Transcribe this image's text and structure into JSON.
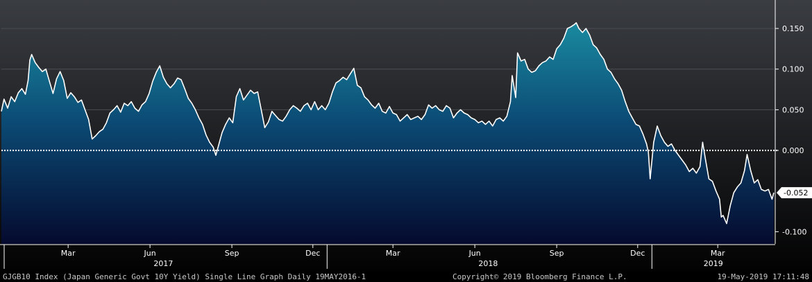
{
  "footer": {
    "description": "GJGB10 Index (Japan Generic Govt 10Y Yield) Single Line Graph  Daily 19MAY2016-1",
    "copyright": "Copyright© 2019 Bloomberg Finance L.P.",
    "timestamp": "19-May-2019 17:11:48"
  },
  "chart_data": {
    "type": "area",
    "title": "",
    "xlabel": "",
    "ylabel": "",
    "x_range": [
      "2016-12-30",
      "2019-05-17"
    ],
    "ylim": [
      -0.115,
      0.185
    ],
    "y_ticks": [
      {
        "value": 0.15,
        "label": "0.150"
      },
      {
        "value": 0.1,
        "label": "0.100"
      },
      {
        "value": 0.05,
        "label": "0.050"
      },
      {
        "value": 0.0,
        "label": "0.000"
      },
      {
        "value": -0.1,
        "label": "-0.100"
      }
    ],
    "zero_line": 0.0,
    "last_value": {
      "value": -0.052,
      "label": "-0.052"
    },
    "month_ticks": [
      {
        "date": "2017-03-15",
        "label": "Mar"
      },
      {
        "date": "2017-06-15",
        "label": "Jun"
      },
      {
        "date": "2017-09-15",
        "label": "Sep"
      },
      {
        "date": "2017-12-15",
        "label": "Dec"
      },
      {
        "date": "2018-03-15",
        "label": "Mar"
      },
      {
        "date": "2018-06-15",
        "label": "Jun"
      },
      {
        "date": "2018-09-15",
        "label": "Sep"
      },
      {
        "date": "2018-12-15",
        "label": "Dec"
      },
      {
        "date": "2019-03-15",
        "label": "Mar"
      }
    ],
    "year_labels": [
      {
        "date": "2017-06-30",
        "label": "2017"
      },
      {
        "date": "2018-06-30",
        "label": "2018"
      },
      {
        "date": "2019-03-10",
        "label": "2019"
      }
    ],
    "year_separators": [
      "2017-12-31",
      "2018-12-31"
    ],
    "series": [
      {
        "values": [
          [
            "2016-12-30",
            0.048
          ],
          [
            "2017-01-02",
            0.063
          ],
          [
            "2017-01-06",
            0.052
          ],
          [
            "2017-01-10",
            0.066
          ],
          [
            "2017-01-14",
            0.06
          ],
          [
            "2017-01-18",
            0.071
          ],
          [
            "2017-01-22",
            0.076
          ],
          [
            "2017-01-26",
            0.069
          ],
          [
            "2017-01-29",
            0.086
          ],
          [
            "2017-01-31",
            0.111
          ],
          [
            "2017-02-02",
            0.118
          ],
          [
            "2017-02-06",
            0.108
          ],
          [
            "2017-02-10",
            0.102
          ],
          [
            "2017-02-14",
            0.097
          ],
          [
            "2017-02-18",
            0.1
          ],
          [
            "2017-02-22",
            0.085
          ],
          [
            "2017-02-26",
            0.07
          ],
          [
            "2017-03-02",
            0.088
          ],
          [
            "2017-03-06",
            0.097
          ],
          [
            "2017-03-10",
            0.086
          ],
          [
            "2017-03-14",
            0.064
          ],
          [
            "2017-03-18",
            0.071
          ],
          [
            "2017-03-22",
            0.066
          ],
          [
            "2017-03-26",
            0.059
          ],
          [
            "2017-03-30",
            0.062
          ],
          [
            "2017-04-03",
            0.05
          ],
          [
            "2017-04-07",
            0.038
          ],
          [
            "2017-04-11",
            0.014
          ],
          [
            "2017-04-15",
            0.018
          ],
          [
            "2017-04-19",
            0.023
          ],
          [
            "2017-04-23",
            0.026
          ],
          [
            "2017-04-27",
            0.034
          ],
          [
            "2017-05-01",
            0.046
          ],
          [
            "2017-05-05",
            0.05
          ],
          [
            "2017-05-09",
            0.055
          ],
          [
            "2017-05-13",
            0.047
          ],
          [
            "2017-05-17",
            0.058
          ],
          [
            "2017-05-21",
            0.055
          ],
          [
            "2017-05-25",
            0.06
          ],
          [
            "2017-05-29",
            0.052
          ],
          [
            "2017-06-02",
            0.048
          ],
          [
            "2017-06-06",
            0.056
          ],
          [
            "2017-06-10",
            0.06
          ],
          [
            "2017-06-14",
            0.07
          ],
          [
            "2017-06-18",
            0.085
          ],
          [
            "2017-06-22",
            0.096
          ],
          [
            "2017-06-26",
            0.104
          ],
          [
            "2017-06-30",
            0.09
          ],
          [
            "2017-07-04",
            0.082
          ],
          [
            "2017-07-08",
            0.077
          ],
          [
            "2017-07-12",
            0.082
          ],
          [
            "2017-07-16",
            0.089
          ],
          [
            "2017-07-20",
            0.087
          ],
          [
            "2017-07-24",
            0.076
          ],
          [
            "2017-07-28",
            0.064
          ],
          [
            "2017-08-01",
            0.058
          ],
          [
            "2017-08-05",
            0.05
          ],
          [
            "2017-08-09",
            0.04
          ],
          [
            "2017-08-13",
            0.032
          ],
          [
            "2017-08-17",
            0.019
          ],
          [
            "2017-08-21",
            0.01
          ],
          [
            "2017-08-25",
            0.004
          ],
          [
            "2017-08-28",
            -0.006
          ],
          [
            "2017-08-31",
            0.006
          ],
          [
            "2017-09-04",
            0.022
          ],
          [
            "2017-09-08",
            0.032
          ],
          [
            "2017-09-12",
            0.04
          ],
          [
            "2017-09-16",
            0.034
          ],
          [
            "2017-09-20",
            0.066
          ],
          [
            "2017-09-24",
            0.076
          ],
          [
            "2017-09-28",
            0.062
          ],
          [
            "2017-10-02",
            0.068
          ],
          [
            "2017-10-06",
            0.074
          ],
          [
            "2017-10-10",
            0.07
          ],
          [
            "2017-10-14",
            0.072
          ],
          [
            "2017-10-18",
            0.05
          ],
          [
            "2017-10-22",
            0.028
          ],
          [
            "2017-10-26",
            0.035
          ],
          [
            "2017-10-30",
            0.048
          ],
          [
            "2017-11-03",
            0.043
          ],
          [
            "2017-11-07",
            0.038
          ],
          [
            "2017-11-11",
            0.036
          ],
          [
            "2017-11-15",
            0.042
          ],
          [
            "2017-11-19",
            0.05
          ],
          [
            "2017-11-23",
            0.055
          ],
          [
            "2017-11-27",
            0.052
          ],
          [
            "2017-12-01",
            0.048
          ],
          [
            "2017-12-05",
            0.055
          ],
          [
            "2017-12-09",
            0.058
          ],
          [
            "2017-12-13",
            0.05
          ],
          [
            "2017-12-17",
            0.06
          ],
          [
            "2017-12-21",
            0.05
          ],
          [
            "2017-12-25",
            0.055
          ],
          [
            "2017-12-29",
            0.05
          ],
          [
            "2018-01-02",
            0.058
          ],
          [
            "2018-01-06",
            0.072
          ],
          [
            "2018-01-10",
            0.083
          ],
          [
            "2018-01-14",
            0.086
          ],
          [
            "2018-01-18",
            0.09
          ],
          [
            "2018-01-22",
            0.087
          ],
          [
            "2018-01-26",
            0.094
          ],
          [
            "2018-01-30",
            0.101
          ],
          [
            "2018-02-03",
            0.08
          ],
          [
            "2018-02-07",
            0.077
          ],
          [
            "2018-02-11",
            0.066
          ],
          [
            "2018-02-15",
            0.062
          ],
          [
            "2018-02-19",
            0.056
          ],
          [
            "2018-02-23",
            0.052
          ],
          [
            "2018-02-27",
            0.058
          ],
          [
            "2018-03-03",
            0.048
          ],
          [
            "2018-03-07",
            0.046
          ],
          [
            "2018-03-11",
            0.054
          ],
          [
            "2018-03-15",
            0.046
          ],
          [
            "2018-03-19",
            0.044
          ],
          [
            "2018-03-23",
            0.036
          ],
          [
            "2018-03-27",
            0.04
          ],
          [
            "2018-03-31",
            0.044
          ],
          [
            "2018-04-04",
            0.038
          ],
          [
            "2018-04-08",
            0.04
          ],
          [
            "2018-04-12",
            0.042
          ],
          [
            "2018-04-16",
            0.038
          ],
          [
            "2018-04-20",
            0.044
          ],
          [
            "2018-04-24",
            0.056
          ],
          [
            "2018-04-28",
            0.052
          ],
          [
            "2018-05-02",
            0.055
          ],
          [
            "2018-05-06",
            0.05
          ],
          [
            "2018-05-10",
            0.048
          ],
          [
            "2018-05-14",
            0.055
          ],
          [
            "2018-05-18",
            0.052
          ],
          [
            "2018-05-22",
            0.04
          ],
          [
            "2018-05-26",
            0.046
          ],
          [
            "2018-05-30",
            0.05
          ],
          [
            "2018-06-03",
            0.046
          ],
          [
            "2018-06-07",
            0.044
          ],
          [
            "2018-06-11",
            0.04
          ],
          [
            "2018-06-15",
            0.038
          ],
          [
            "2018-06-19",
            0.034
          ],
          [
            "2018-06-23",
            0.036
          ],
          [
            "2018-06-27",
            0.032
          ],
          [
            "2018-07-01",
            0.036
          ],
          [
            "2018-07-05",
            0.03
          ],
          [
            "2018-07-09",
            0.038
          ],
          [
            "2018-07-13",
            0.04
          ],
          [
            "2018-07-17",
            0.036
          ],
          [
            "2018-07-21",
            0.042
          ],
          [
            "2018-07-25",
            0.06
          ],
          [
            "2018-07-27",
            0.092
          ],
          [
            "2018-07-31",
            0.065
          ],
          [
            "2018-08-02",
            0.12
          ],
          [
            "2018-08-06",
            0.11
          ],
          [
            "2018-08-10",
            0.112
          ],
          [
            "2018-08-14",
            0.1
          ],
          [
            "2018-08-18",
            0.096
          ],
          [
            "2018-08-22",
            0.098
          ],
          [
            "2018-08-26",
            0.104
          ],
          [
            "2018-08-30",
            0.108
          ],
          [
            "2018-09-03",
            0.11
          ],
          [
            "2018-09-07",
            0.115
          ],
          [
            "2018-09-11",
            0.112
          ],
          [
            "2018-09-15",
            0.125
          ],
          [
            "2018-09-19",
            0.13
          ],
          [
            "2018-09-23",
            0.138
          ],
          [
            "2018-09-27",
            0.15
          ],
          [
            "2018-10-01",
            0.152
          ],
          [
            "2018-10-05",
            0.155
          ],
          [
            "2018-10-07",
            0.157
          ],
          [
            "2018-10-10",
            0.15
          ],
          [
            "2018-10-14",
            0.145
          ],
          [
            "2018-10-18",
            0.15
          ],
          [
            "2018-10-22",
            0.142
          ],
          [
            "2018-10-26",
            0.13
          ],
          [
            "2018-10-30",
            0.126
          ],
          [
            "2018-11-03",
            0.118
          ],
          [
            "2018-11-07",
            0.112
          ],
          [
            "2018-11-11",
            0.1
          ],
          [
            "2018-11-15",
            0.096
          ],
          [
            "2018-11-19",
            0.088
          ],
          [
            "2018-11-23",
            0.082
          ],
          [
            "2018-11-27",
            0.074
          ],
          [
            "2018-12-01",
            0.06
          ],
          [
            "2018-12-05",
            0.048
          ],
          [
            "2018-12-09",
            0.04
          ],
          [
            "2018-12-13",
            0.032
          ],
          [
            "2018-12-17",
            0.03
          ],
          [
            "2018-12-21",
            0.02
          ],
          [
            "2018-12-25",
            0.008
          ],
          [
            "2018-12-27",
            -0.002
          ],
          [
            "2018-12-29",
            -0.035
          ],
          [
            "2019-01-02",
            0.01
          ],
          [
            "2019-01-06",
            0.03
          ],
          [
            "2019-01-10",
            0.018
          ],
          [
            "2019-01-14",
            0.01
          ],
          [
            "2019-01-18",
            0.005
          ],
          [
            "2019-01-22",
            0.008
          ],
          [
            "2019-01-26",
            0.0
          ],
          [
            "2019-01-30",
            -0.006
          ],
          [
            "2019-02-03",
            -0.012
          ],
          [
            "2019-02-07",
            -0.018
          ],
          [
            "2019-02-11",
            -0.026
          ],
          [
            "2019-02-15",
            -0.022
          ],
          [
            "2019-02-19",
            -0.028
          ],
          [
            "2019-02-23",
            -0.02
          ],
          [
            "2019-02-26",
            0.01
          ],
          [
            "2019-03-01",
            -0.01
          ],
          [
            "2019-03-05",
            -0.035
          ],
          [
            "2019-03-09",
            -0.038
          ],
          [
            "2019-03-13",
            -0.05
          ],
          [
            "2019-03-17",
            -0.06
          ],
          [
            "2019-03-19",
            -0.082
          ],
          [
            "2019-03-21",
            -0.08
          ],
          [
            "2019-03-25",
            -0.09
          ],
          [
            "2019-03-29",
            -0.068
          ],
          [
            "2019-04-02",
            -0.052
          ],
          [
            "2019-04-06",
            -0.045
          ],
          [
            "2019-04-10",
            -0.04
          ],
          [
            "2019-04-14",
            -0.025
          ],
          [
            "2019-04-17",
            -0.005
          ],
          [
            "2019-04-21",
            -0.025
          ],
          [
            "2019-04-25",
            -0.04
          ],
          [
            "2019-04-29",
            -0.036
          ],
          [
            "2019-05-03",
            -0.048
          ],
          [
            "2019-05-07",
            -0.05
          ],
          [
            "2019-05-11",
            -0.048
          ],
          [
            "2019-05-15",
            -0.06
          ],
          [
            "2019-05-17",
            -0.052
          ]
        ]
      }
    ]
  }
}
